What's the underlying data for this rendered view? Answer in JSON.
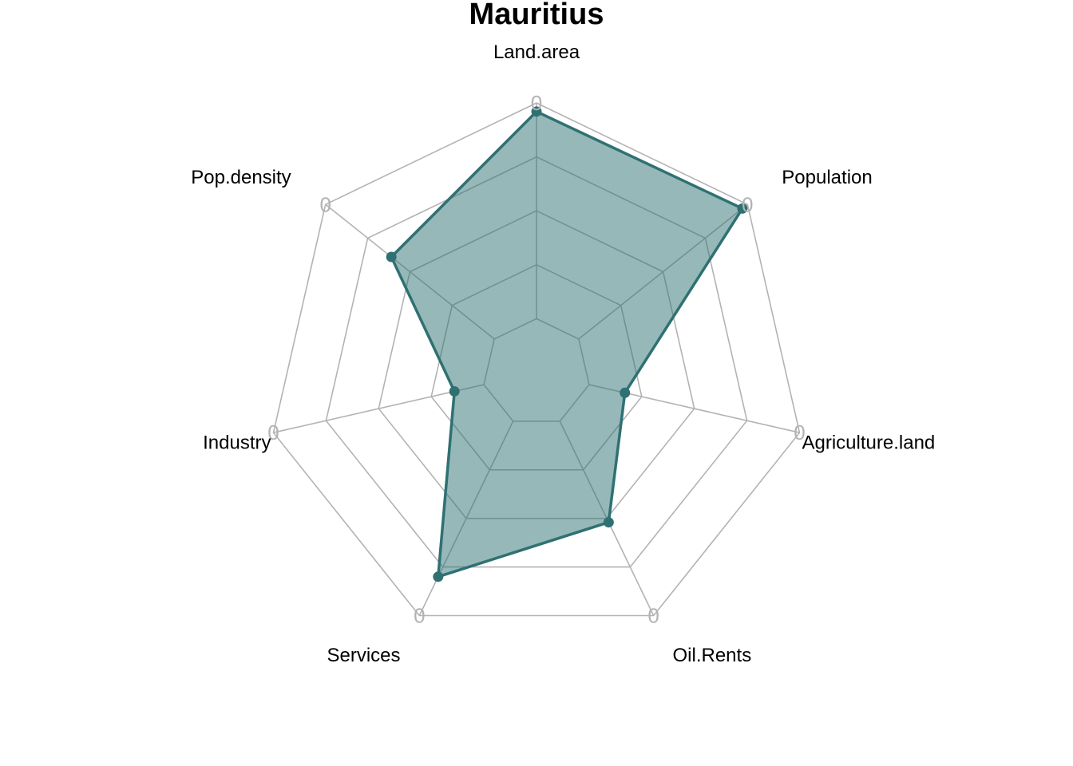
{
  "chart_data": {
    "type": "radar",
    "title": "Mauritius",
    "axes": [
      "Land.area",
      "Population",
      "Agriculture.land",
      "Oil.Rents",
      "Services",
      "Industry",
      "Pop.density"
    ],
    "series": [
      {
        "values": [
          0.96,
          0.97,
          0.17,
          0.52,
          0.8,
          0.14,
          0.61
        ]
      }
    ],
    "range": [
      0,
      1
    ],
    "grid_levels": 5,
    "axis_tick_label": "0",
    "colors": {
      "series_line": "#2f7173",
      "series_fill": "#2f7173",
      "fill_opacity": 0.5,
      "grid": "#b3b3b3",
      "inner_grid": "#8e8e8e"
    }
  }
}
